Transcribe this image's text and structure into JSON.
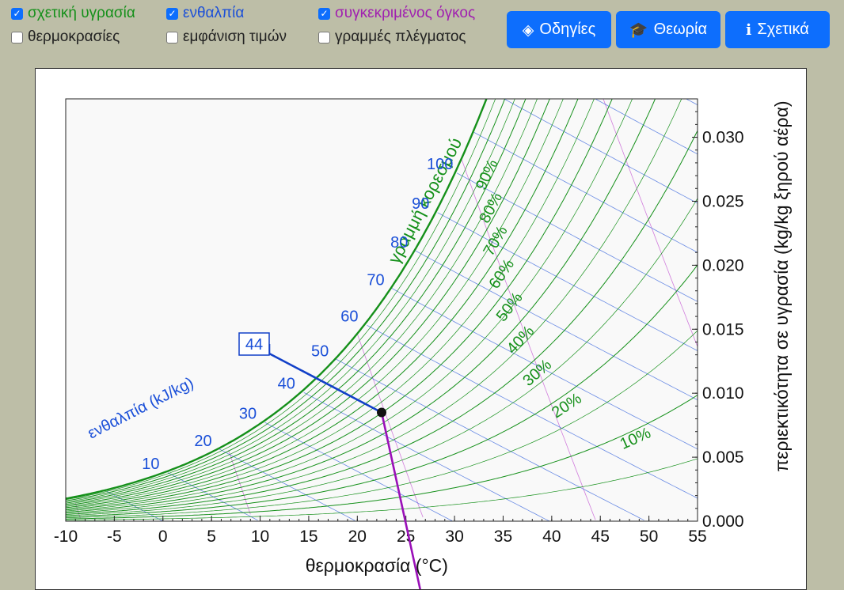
{
  "options": [
    {
      "label": "σχετική υγρασία",
      "checked": true,
      "color": "#15901a"
    },
    {
      "label": "ενθαλπία",
      "checked": true,
      "color": "#1a4fd8"
    },
    {
      "label": "συγκεκριμένος όγκος",
      "checked": true,
      "color": "#a020b0"
    },
    {
      "label": "θερμοκρασίες",
      "checked": false,
      "color": "#222222"
    },
    {
      "label": "εμφάνιση τιμών",
      "checked": false,
      "color": "#222222"
    },
    {
      "label": "γραμμές πλέγματος",
      "checked": false,
      "color": "#222222"
    }
  ],
  "buttons": [
    {
      "label": "Οδηγίες",
      "icon": "directions-icon"
    },
    {
      "label": "Θεωρία",
      "icon": "graduation-cap-icon"
    },
    {
      "label": "Σχετικά",
      "icon": "info-icon"
    }
  ],
  "chart_data": {
    "type": "psychrometric",
    "xlabel": "θερμοκρασία (°C)",
    "ylabel": "περιεκτικότητα σε υγρασία (kg/kg ξηρού αέρα)",
    "xlim": [
      -10,
      55
    ],
    "ylim": [
      0,
      0.033
    ],
    "x_ticks": [
      "-10",
      "-5",
      "0",
      "5",
      "10",
      "15",
      "20",
      "25",
      "30",
      "35",
      "40",
      "45",
      "50",
      "55"
    ],
    "y_ticks": [
      "0.000",
      "0.005",
      "0.010",
      "0.015",
      "0.020",
      "0.025",
      "0.030"
    ],
    "saturation_label": "γραμμή κορεσμού",
    "relative_humidity": {
      "curves": [
        10,
        20,
        30,
        40,
        50,
        60,
        70,
        80,
        90,
        100
      ],
      "minor_curves": [
        5,
        15,
        25,
        35,
        45,
        55,
        65,
        75,
        85,
        95
      ],
      "labels": [
        "10%",
        "20%",
        "30%",
        "40%",
        "50%",
        "60%",
        "70%",
        "80%",
        "90%"
      ],
      "color": "#15901a"
    },
    "enthalpy": {
      "title": "ενθαλπία (kJ/kg)",
      "lines": [
        -10,
        0,
        10,
        20,
        30,
        40,
        50,
        60,
        70,
        80,
        90,
        100,
        110,
        120,
        130,
        140,
        150,
        160
      ],
      "labels": [
        "10",
        "20",
        "30",
        "40",
        "50",
        "60",
        "70",
        "80",
        "90",
        "100"
      ],
      "color": "#1a4fd8"
    },
    "specific_volume": {
      "lines": [
        0.75,
        0.8,
        0.85,
        0.9,
        0.95,
        1.0,
        1.05
      ],
      "color": "#c04ad0"
    },
    "state_point": {
      "temperature": 22.5,
      "humidity_ratio": 0.0085
    },
    "enthalpy_readout": "44",
    "volume_readout_line": {
      "t_start": 22.5,
      "t_end": 26.5
    }
  }
}
